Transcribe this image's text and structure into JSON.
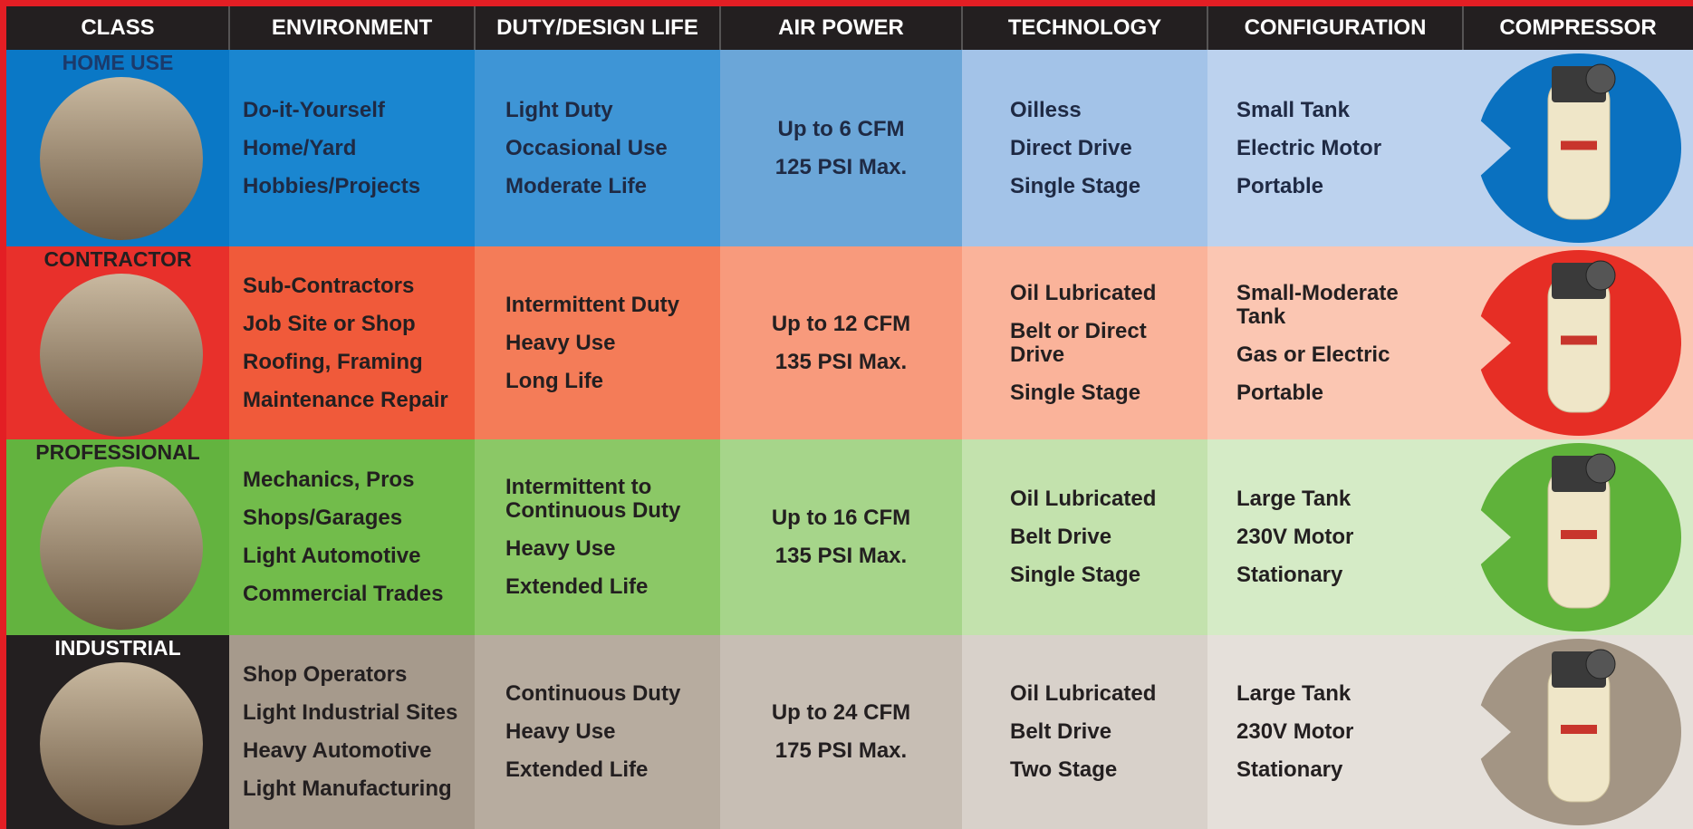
{
  "header": {
    "columns": [
      "CLASS",
      "ENVIRONMENT",
      "DUTY/DESIGN LIFE",
      "AIR POWER",
      "TECHNOLOGY",
      "CONFIGURATION",
      "COMPRESSOR"
    ]
  },
  "rows": [
    {
      "class": "HOME USE",
      "environment": [
        "Do-it-Yourself",
        "Home/Yard",
        "Hobbies/Projects"
      ],
      "duty": [
        "Light Duty",
        "Occasional Use",
        "Moderate Life"
      ],
      "air_power": [
        "Up to 6 CFM",
        "125 PSI Max."
      ],
      "technology": [
        "Oilless",
        "Direct Drive",
        "Single Stage"
      ],
      "configuration": [
        "Small Tank",
        "Electric Motor",
        "Portable"
      ]
    },
    {
      "class": "CONTRACTOR",
      "environment": [
        "Sub-Contractors",
        "Job Site or Shop",
        "Roofing, Framing",
        "Maintenance Repair"
      ],
      "duty": [
        "Intermittent Duty",
        "Heavy Use",
        "Long Life"
      ],
      "air_power": [
        "Up to 12 CFM",
        "135 PSI Max."
      ],
      "technology": [
        "Oil Lubricated",
        "Belt or Direct Drive",
        "Single Stage"
      ],
      "configuration": [
        "Small-Moderate Tank",
        "Gas or Electric",
        "Portable"
      ]
    },
    {
      "class": "PROFESSIONAL",
      "environment": [
        "Mechanics, Pros",
        "Shops/Garages",
        "Light Automotive",
        "Commercial Trades"
      ],
      "duty": [
        "Intermittent to Continuous Duty",
        "Heavy Use",
        "Extended Life"
      ],
      "air_power": [
        "Up to 16 CFM",
        "135 PSI Max."
      ],
      "technology": [
        "Oil Lubricated",
        "Belt Drive",
        "Single Stage"
      ],
      "configuration": [
        "Large Tank",
        "230V Motor",
        "Stationary"
      ]
    },
    {
      "class": "INDUSTRIAL",
      "environment": [
        "Shop Operators",
        "Light Industrial Sites",
        "Heavy Automotive",
        "Light Manufacturing"
      ],
      "duty": [
        "Continuous Duty",
        "Heavy Use",
        "Extended Life"
      ],
      "air_power": [
        "Up to 24 CFM",
        "175 PSI Max."
      ],
      "technology": [
        "Oil Lubricated",
        "Belt Drive",
        "Two Stage"
      ],
      "configuration": [
        "Large Tank",
        "230V Motor",
        "Stationary"
      ]
    }
  ]
}
